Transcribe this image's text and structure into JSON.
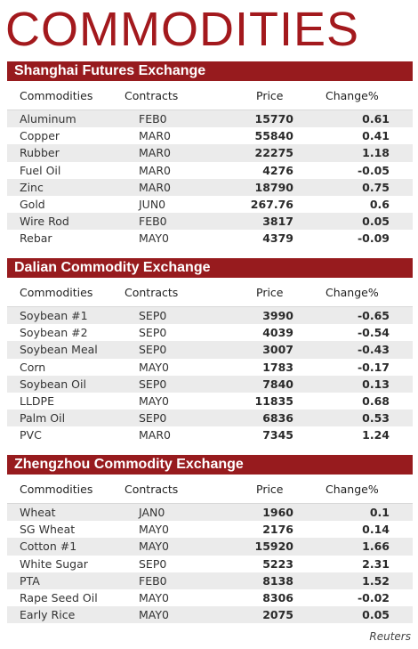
{
  "title": "COMMODITIES",
  "columns": {
    "commodity": "Commodities",
    "contract": "Contracts",
    "price": "Price",
    "change": "Change%"
  },
  "sections": [
    {
      "name": "Shanghai Futures Exchange",
      "rows": [
        {
          "commodity": "Aluminum",
          "contract": "FEB0",
          "price": "15770",
          "change": "0.61"
        },
        {
          "commodity": "Copper",
          "contract": "MAR0",
          "price": "55840",
          "change": "0.41"
        },
        {
          "commodity": "Rubber",
          "contract": "MAR0",
          "price": "22275",
          "change": "1.18"
        },
        {
          "commodity": "Fuel Oil",
          "contract": "MAR0",
          "price": "4276",
          "change": "-0.05"
        },
        {
          "commodity": "Zinc",
          "contract": "MAR0",
          "price": "18790",
          "change": "0.75"
        },
        {
          "commodity": "Gold",
          "contract": "JUN0",
          "price": "267.76",
          "change": "0.6"
        },
        {
          "commodity": "Wire Rod",
          "contract": "FEB0",
          "price": "3817",
          "change": "0.05"
        },
        {
          "commodity": "Rebar",
          "contract": "MAY0",
          "price": "4379",
          "change": "-0.09"
        }
      ]
    },
    {
      "name": "Dalian Commodity Exchange",
      "rows": [
        {
          "commodity": "Soybean #1",
          "contract": "SEP0",
          "price": "3990",
          "change": "-0.65"
        },
        {
          "commodity": "Soybean #2",
          "contract": "SEP0",
          "price": "4039",
          "change": "-0.54"
        },
        {
          "commodity": "Soybean Meal",
          "contract": "SEP0",
          "price": "3007",
          "change": "-0.43"
        },
        {
          "commodity": "Corn",
          "contract": "MAY0",
          "price": "1783",
          "change": "-0.17"
        },
        {
          "commodity": "Soybean Oil",
          "contract": "SEP0",
          "price": "7840",
          "change": "0.13"
        },
        {
          "commodity": "LLDPE",
          "contract": "MAY0",
          "price": "11835",
          "change": "0.68"
        },
        {
          "commodity": "Palm Oil",
          "contract": "SEP0",
          "price": "6836",
          "change": "0.53"
        },
        {
          "commodity": "PVC",
          "contract": "MAR0",
          "price": "7345",
          "change": "1.24"
        }
      ]
    },
    {
      "name": "Zhengzhou Commodity Exchange",
      "rows": [
        {
          "commodity": "Wheat",
          "contract": "JAN0",
          "price": "1960",
          "change": "0.1"
        },
        {
          "commodity": "SG Wheat",
          "contract": "MAY0",
          "price": "2176",
          "change": "0.14"
        },
        {
          "commodity": "Cotton #1",
          "contract": "MAY0",
          "price": "15920",
          "change": "1.66"
        },
        {
          "commodity": "White Sugar",
          "contract": "SEP0",
          "price": "5223",
          "change": "2.31"
        },
        {
          "commodity": "PTA",
          "contract": "FEB0",
          "price": "8138",
          "change": "1.52"
        },
        {
          "commodity": "Rape Seed Oil",
          "contract": "MAY0",
          "price": "8306",
          "change": "-0.02"
        },
        {
          "commodity": "Early Rice",
          "contract": "MAY0",
          "price": "2075",
          "change": "0.05"
        }
      ]
    }
  ],
  "source": "Reuters"
}
